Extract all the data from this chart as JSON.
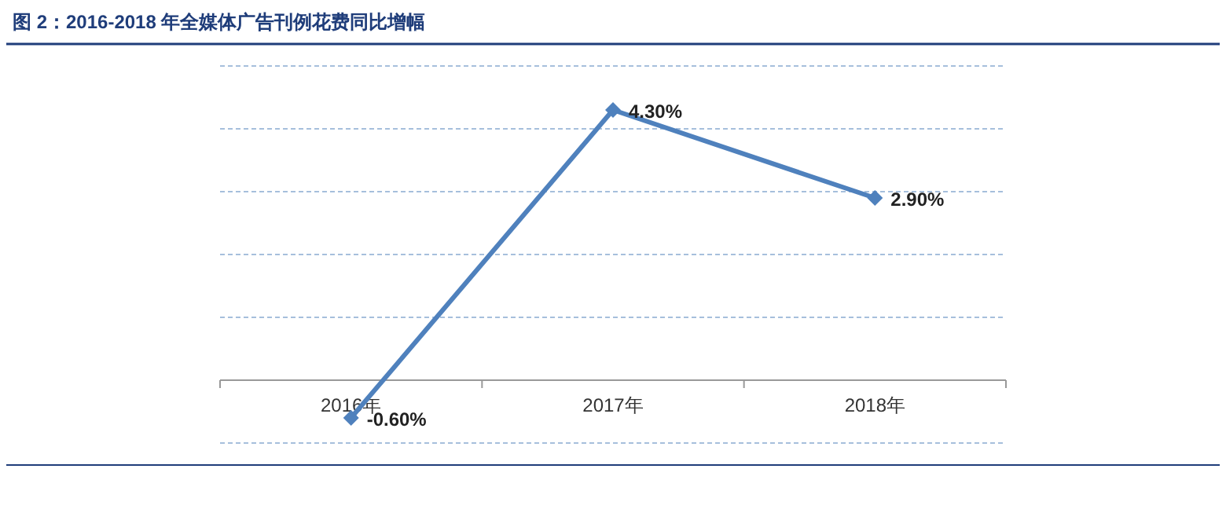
{
  "chart_data": {
    "type": "line",
    "title": "图 2：2016-2018 年全媒体广告刊例花费同比增幅",
    "categories": [
      "2016年",
      "2017年",
      "2018年"
    ],
    "series": [
      {
        "color": "#4f81bd",
        "values": [
          -0.6,
          4.3,
          2.9
        ],
        "value_labels": [
          "-0.60%",
          "4.30%",
          "2.90%"
        ]
      }
    ],
    "ylim": [
      -1,
      5
    ],
    "yticks": [
      {
        "value": -1,
        "label": null
      },
      {
        "value": 0,
        "label": null
      },
      {
        "value": 1,
        "label": null
      },
      {
        "value": 2,
        "label": null
      },
      {
        "value": 3,
        "label": null
      },
      {
        "value": 4,
        "label": null
      },
      {
        "value": 5,
        "label": null
      }
    ],
    "grid": "y",
    "marker": "diamond",
    "line_style": "solid",
    "tick_labels": "x"
  }
}
